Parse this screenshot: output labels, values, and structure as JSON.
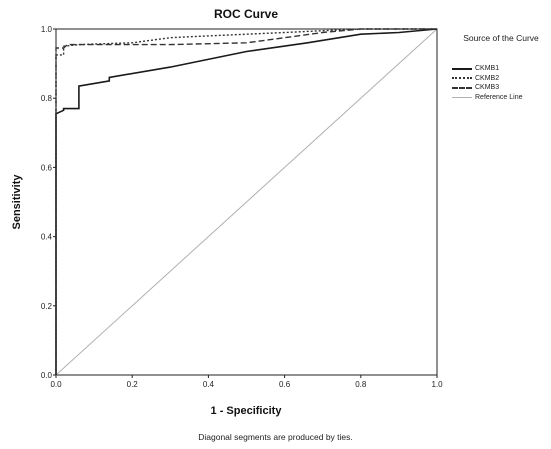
{
  "chart_data": {
    "type": "line",
    "title": "ROC Curve",
    "xlabel": "1 - Specificity",
    "ylabel": "Sensitivity",
    "xlim": [
      0.0,
      1.0
    ],
    "ylim": [
      0.0,
      1.0
    ],
    "xticks": [
      "0.0",
      "0.2",
      "0.4",
      "0.6",
      "0.8",
      "1.0"
    ],
    "yticks": [
      "0.0",
      "0.2",
      "0.4",
      "0.6",
      "0.8",
      "1.0"
    ],
    "grid": false,
    "legend_title": "Source of the Curve",
    "legend_position": "right",
    "footnote": "Diagonal segments are produced by ties.",
    "series": [
      {
        "name": "CKMB1",
        "style": "solid",
        "color": "#1a1a1a",
        "x": [
          0.0,
          0.0,
          0.02,
          0.02,
          0.06,
          0.06,
          0.14,
          0.14,
          0.3,
          0.5,
          0.66,
          0.8,
          0.9,
          1.0
        ],
        "y": [
          0.0,
          0.755,
          0.765,
          0.77,
          0.77,
          0.835,
          0.85,
          0.86,
          0.89,
          0.935,
          0.96,
          0.985,
          0.99,
          1.0
        ]
      },
      {
        "name": "CKMB2",
        "style": "dotted",
        "color": "#333333",
        "x": [
          0.0,
          0.0,
          0.02,
          0.02,
          0.06,
          0.2,
          0.3,
          0.4,
          0.5,
          0.6,
          0.7,
          0.8,
          1.0
        ],
        "y": [
          0.0,
          0.925,
          0.925,
          0.95,
          0.955,
          0.96,
          0.975,
          0.98,
          0.985,
          0.99,
          0.995,
          1.0,
          1.0
        ]
      },
      {
        "name": "CKMB3",
        "style": "dashed",
        "color": "#333333",
        "x": [
          0.0,
          0.0,
          0.02,
          0.03,
          0.3,
          0.5,
          0.6,
          0.7,
          0.8,
          1.0
        ],
        "y": [
          0.0,
          0.945,
          0.945,
          0.955,
          0.955,
          0.96,
          0.975,
          0.99,
          1.0,
          1.0
        ]
      },
      {
        "name": "Reference Line",
        "style": "solid",
        "color": "#b0b0b0",
        "x": [
          0.0,
          1.0
        ],
        "y": [
          0.0,
          1.0
        ]
      }
    ]
  }
}
